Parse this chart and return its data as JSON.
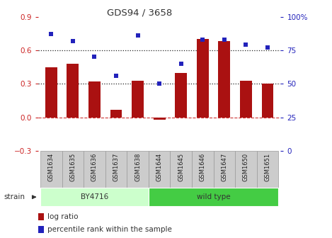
{
  "title": "GDS94 / 3658",
  "samples": [
    "GSM1634",
    "GSM1635",
    "GSM1636",
    "GSM1637",
    "GSM1638",
    "GSM1644",
    "GSM1645",
    "GSM1646",
    "GSM1647",
    "GSM1650",
    "GSM1651"
  ],
  "log_ratio": [
    0.45,
    0.48,
    0.32,
    0.07,
    0.33,
    -0.02,
    0.4,
    0.7,
    0.68,
    0.33,
    0.3
  ],
  "percentile_rank": [
    87,
    82,
    70,
    56,
    86,
    50,
    65,
    83,
    83,
    79,
    77
  ],
  "bar_color": "#aa1111",
  "dot_color": "#2222bb",
  "ylim_left": [
    -0.3,
    0.9
  ],
  "ylim_right": [
    0,
    100
  ],
  "yticks_left": [
    -0.3,
    0.0,
    0.3,
    0.6,
    0.9
  ],
  "yticks_right": [
    0,
    25,
    50,
    75,
    100
  ],
  "ytick_labels_right": [
    "0",
    "25",
    "50",
    "75",
    "100%"
  ],
  "hlines": [
    0.3,
    0.6
  ],
  "hline_zero_color": "#cc3333",
  "hline_dotted_color": "#222222",
  "strain_groups": [
    {
      "label": "BY4716",
      "start": 0,
      "end": 5,
      "color": "#ccffcc"
    },
    {
      "label": "wild type",
      "start": 5,
      "end": 11,
      "color": "#44cc44"
    }
  ],
  "strain_label": "strain",
  "legend_log_ratio": "log ratio",
  "legend_percentile": "percentile rank within the sample",
  "bg_color": "#ffffff",
  "plot_bg_color": "#ffffff",
  "tick_label_color_left": "#cc2222",
  "tick_label_color_right": "#2222bb",
  "box_color": "#cccccc",
  "box_edge_color": "#999999"
}
